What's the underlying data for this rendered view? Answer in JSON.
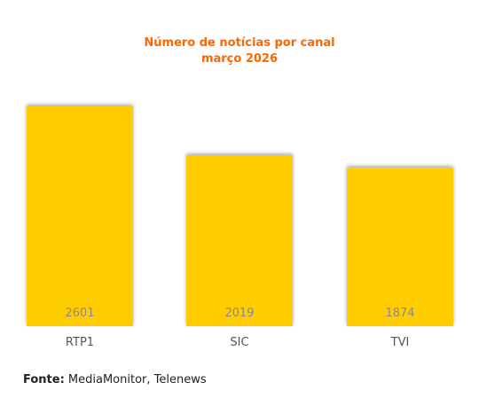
{
  "chart_data": {
    "type": "bar",
    "title": "Número de notícias por canal",
    "subtitle": "março 2026",
    "categories": [
      "RTP1",
      "SIC",
      "TVI"
    ],
    "values": [
      2601,
      2019,
      1874
    ],
    "ylim": [
      0,
      2601
    ],
    "grid": false,
    "legend": "none",
    "bar_color": "#ffcc00",
    "title_color": "#ff6600",
    "value_label_color": "#8a8a8a",
    "category_label_color": "#555555"
  },
  "source": {
    "label": "Fonte:",
    "text": "MediaMonitor, Telenews"
  }
}
